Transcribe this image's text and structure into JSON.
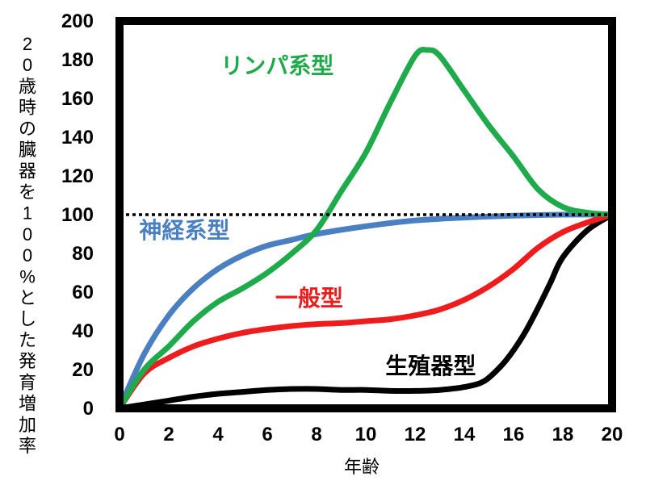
{
  "chart_data": {
    "type": "line",
    "title": "",
    "xlabel": "年齢",
    "ylabel": "20歳時の臓器を100%とした発育増加率",
    "xlim": [
      0,
      20
    ],
    "ylim": [
      0,
      200
    ],
    "x_ticks": [
      "0",
      "2",
      "4",
      "6",
      "8",
      "10",
      "12",
      "14",
      "16",
      "18",
      "20"
    ],
    "y_ticks": [
      "0",
      "20",
      "40",
      "60",
      "80",
      "100",
      "120",
      "140",
      "160",
      "180",
      "200"
    ],
    "reference_line": {
      "y": 100,
      "style": "dotted"
    },
    "grid": false,
    "series": [
      {
        "name": "リンパ系型",
        "color": "#1faa4b",
        "x": [
          0,
          1,
          2,
          3,
          4,
          5,
          6,
          7,
          8,
          9,
          10,
          11,
          12,
          12.5,
          13,
          14,
          15,
          16,
          17,
          18,
          19,
          20
        ],
        "y": [
          0,
          20,
          32,
          45,
          55,
          62,
          70,
          80,
          92,
          112,
          132,
          158,
          182,
          185,
          182,
          164,
          146,
          130,
          113,
          104,
          101,
          100
        ]
      },
      {
        "name": "神経系型",
        "color": "#4a7fc1",
        "x": [
          0,
          1,
          2,
          3,
          4,
          5,
          6,
          7,
          8,
          10,
          12,
          14,
          16,
          18,
          20
        ],
        "y": [
          0,
          28,
          48,
          62,
          72,
          79,
          84,
          87,
          90,
          94,
          97,
          98.5,
          99.5,
          100,
          100
        ]
      },
      {
        "name": "一般型",
        "color": "#ee1c1c",
        "x": [
          0,
          1,
          2,
          3,
          4,
          5,
          6,
          7,
          8,
          9,
          10,
          11,
          12,
          13,
          14,
          15,
          16,
          17,
          18,
          19,
          20
        ],
        "y": [
          0,
          18,
          26,
          32,
          36,
          39,
          41,
          42.5,
          43.5,
          44,
          45,
          46,
          48,
          51,
          56,
          63,
          72,
          83,
          91,
          96,
          100
        ]
      },
      {
        "name": "生殖器型",
        "color": "#000000",
        "x": [
          0,
          1,
          2,
          3,
          4,
          5,
          6,
          7,
          8,
          9,
          10,
          11,
          12,
          13,
          14,
          14.8,
          15.5,
          16,
          16.5,
          17,
          17.5,
          18,
          19,
          20
        ],
        "y": [
          0,
          2,
          4,
          6,
          7.5,
          8.5,
          9.5,
          10,
          10,
          9.5,
          9.5,
          9,
          9,
          9.5,
          11,
          14,
          22,
          30,
          40,
          52,
          65,
          78,
          92,
          100
        ]
      }
    ]
  }
}
